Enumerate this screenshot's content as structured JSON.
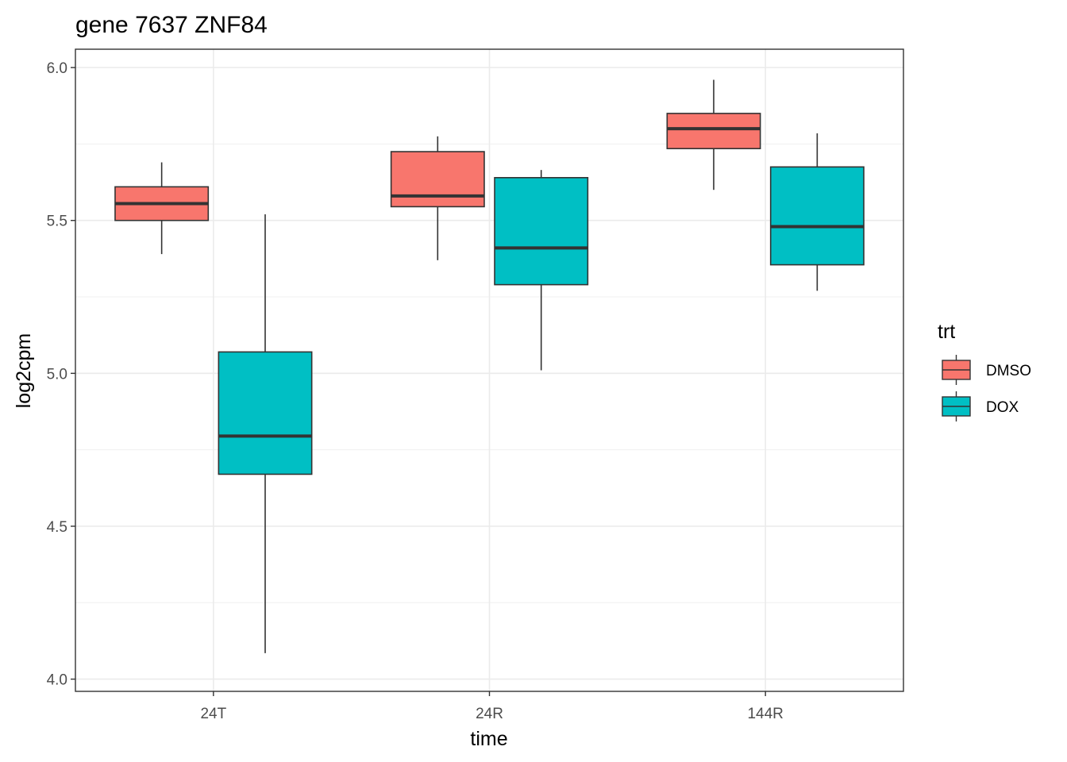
{
  "chart_data": {
    "type": "boxplot",
    "title": "gene 7637 ZNF84",
    "xlabel": "time",
    "ylabel": "log2cpm",
    "categories": [
      "24T",
      "24R",
      "144R"
    ],
    "ylim": [
      3.96,
      6.06
    ],
    "yticks": [
      4.0,
      4.5,
      5.0,
      5.5,
      6.0
    ],
    "ytick_labels": [
      "4.0",
      "4.5",
      "5.0",
      "5.5",
      "6.0"
    ],
    "grid": true,
    "legend": {
      "title": "trt",
      "position": "right",
      "entries": [
        "DMSO",
        "DOX"
      ]
    },
    "series": [
      {
        "name": "DMSO",
        "color": "#f8766d",
        "boxes": [
          {
            "category": "24T",
            "min": 5.39,
            "q1": 5.5,
            "median": 5.555,
            "q3": 5.61,
            "max": 5.69
          },
          {
            "category": "24R",
            "min": 5.37,
            "q1": 5.545,
            "median": 5.58,
            "q3": 5.725,
            "max": 5.775
          },
          {
            "category": "144R",
            "min": 5.6,
            "q1": 5.735,
            "median": 5.8,
            "q3": 5.85,
            "max": 5.96
          }
        ]
      },
      {
        "name": "DOX",
        "color": "#00bfc4",
        "boxes": [
          {
            "category": "24T",
            "min": 4.085,
            "q1": 4.67,
            "median": 4.795,
            "q3": 5.07,
            "max": 5.52
          },
          {
            "category": "24R",
            "min": 5.01,
            "q1": 5.29,
            "median": 5.41,
            "q3": 5.64,
            "max": 5.665
          },
          {
            "category": "144R",
            "min": 5.27,
            "q1": 5.355,
            "median": 5.48,
            "q3": 5.675,
            "max": 5.785
          }
        ]
      }
    ]
  }
}
